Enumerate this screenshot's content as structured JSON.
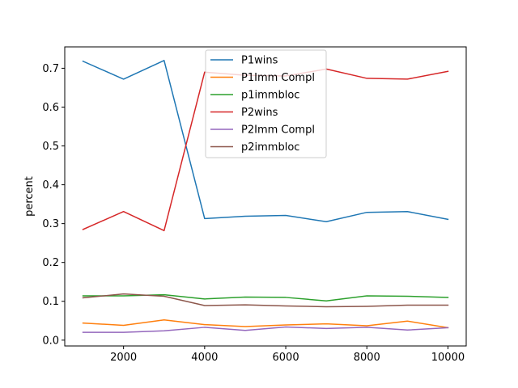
{
  "chart_data": {
    "type": "line",
    "title": "",
    "xlabel": "",
    "ylabel": "percent",
    "xlim": [
      550,
      10450
    ],
    "ylim": [
      -0.015,
      0.755
    ],
    "xticks": [
      2000,
      4000,
      6000,
      8000,
      10000
    ],
    "yticks": [
      0.0,
      0.1,
      0.2,
      0.3,
      0.4,
      0.5,
      0.6,
      0.7
    ],
    "grid": false,
    "legend_position": "top-center",
    "x": [
      1000,
      2000,
      3000,
      4000,
      5000,
      6000,
      7000,
      8000,
      9000,
      10000
    ],
    "series": [
      {
        "name": "P1wins",
        "color": "#1f77b4",
        "values": [
          0.718,
          0.672,
          0.72,
          0.313,
          0.319,
          0.321,
          0.305,
          0.329,
          0.331,
          0.311
        ]
      },
      {
        "name": "P1Imm Compl",
        "color": "#ff7f0e",
        "values": [
          0.044,
          0.038,
          0.052,
          0.04,
          0.035,
          0.039,
          0.042,
          0.037,
          0.049,
          0.032
        ]
      },
      {
        "name": "p1immbloc",
        "color": "#2ca02c",
        "values": [
          0.114,
          0.114,
          0.117,
          0.106,
          0.111,
          0.11,
          0.101,
          0.114,
          0.113,
          0.11
        ]
      },
      {
        "name": "P2wins",
        "color": "#d62728",
        "values": [
          0.285,
          0.331,
          0.282,
          0.69,
          0.682,
          0.68,
          0.698,
          0.674,
          0.672,
          0.692
        ]
      },
      {
        "name": "P2Imm Compl",
        "color": "#9467bd",
        "values": [
          0.02,
          0.02,
          0.024,
          0.033,
          0.025,
          0.034,
          0.03,
          0.033,
          0.026,
          0.032
        ]
      },
      {
        "name": "p2immbloc",
        "color": "#8c564b",
        "values": [
          0.109,
          0.119,
          0.113,
          0.089,
          0.091,
          0.088,
          0.086,
          0.087,
          0.09,
          0.09
        ]
      }
    ]
  }
}
